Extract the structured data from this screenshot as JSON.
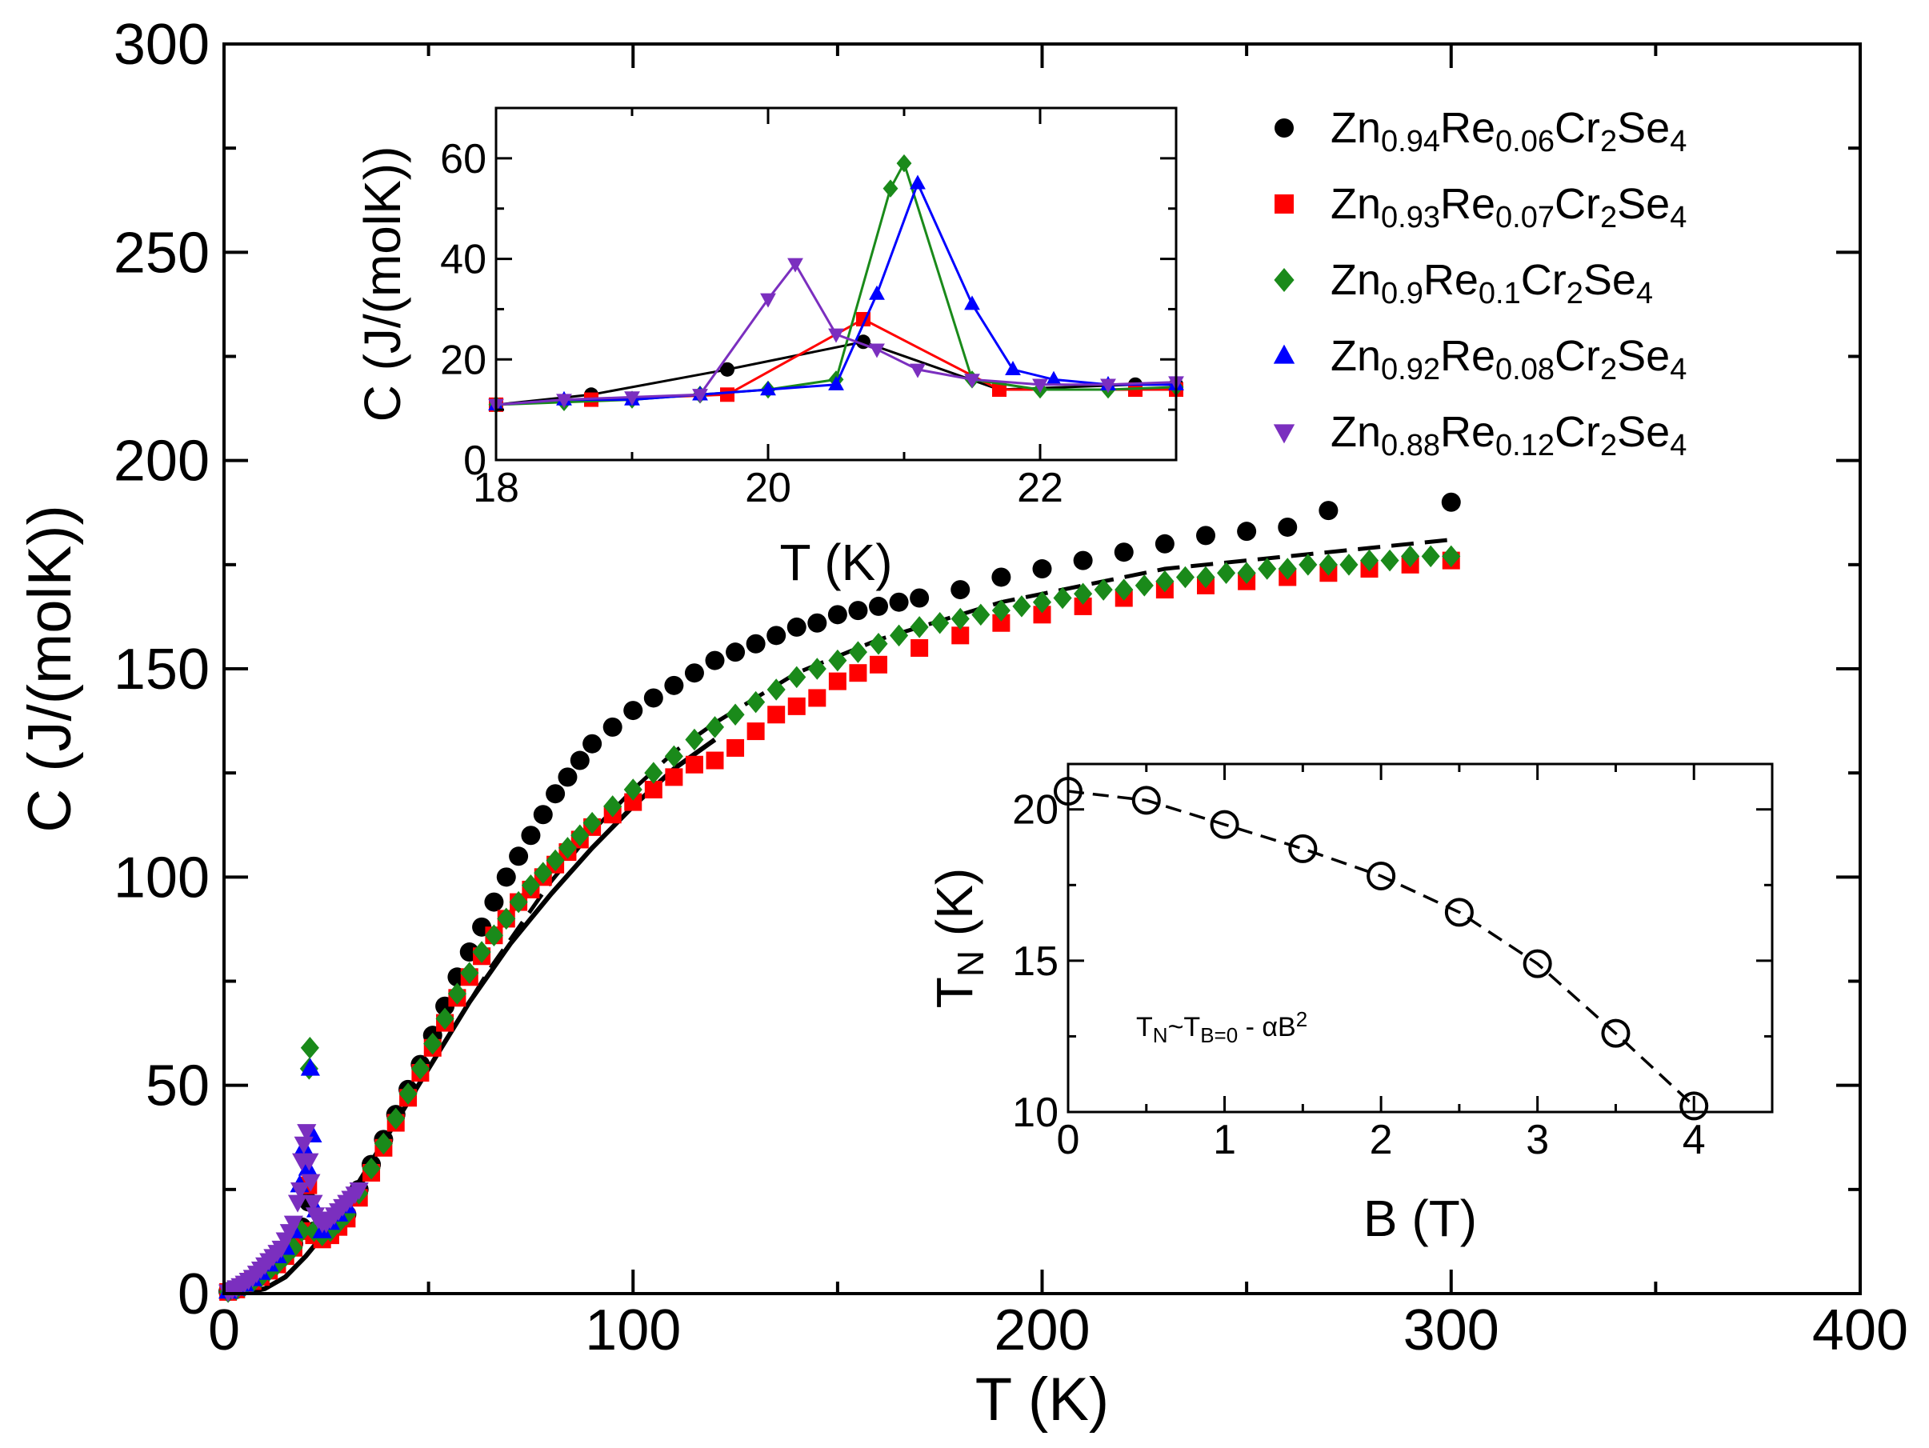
{
  "chart_data": [
    {
      "id": "main",
      "type": "scatter",
      "title": "",
      "xlabel": "T (K)",
      "ylabel": "C (J/(molK))",
      "xlim": [
        0,
        400
      ],
      "ylim": [
        0,
        300
      ],
      "xticks": [
        0,
        100,
        200,
        300,
        400
      ],
      "yticks": [
        0,
        50,
        100,
        150,
        200,
        250,
        300
      ],
      "legend": {
        "position": "top-right",
        "entries": [
          {
            "series": "s094",
            "parts": [
              [
                "Zn",
                ""
              ],
              [
                "0.94",
                "sub"
              ],
              [
                "Re",
                ""
              ],
              [
                "0.06",
                "sub"
              ],
              [
                "Cr",
                ""
              ],
              [
                "2",
                "sub"
              ],
              [
                "Se",
                ""
              ],
              [
                "4",
                "sub"
              ]
            ]
          },
          {
            "series": "s093",
            "parts": [
              [
                "Zn",
                ""
              ],
              [
                "0.93",
                "sub"
              ],
              [
                "Re",
                ""
              ],
              [
                "0.07",
                "sub"
              ],
              [
                "Cr",
                ""
              ],
              [
                "2",
                "sub"
              ],
              [
                "Se",
                ""
              ],
              [
                "4",
                "sub"
              ]
            ]
          },
          {
            "series": "s09",
            "parts": [
              [
                "Zn",
                ""
              ],
              [
                "0.9",
                "sub"
              ],
              [
                "Re",
                ""
              ],
              [
                "0.1",
                "sub"
              ],
              [
                "Cr",
                ""
              ],
              [
                "2",
                "sub"
              ],
              [
                "Se",
                ""
              ],
              [
                "4",
                "sub"
              ]
            ]
          },
          {
            "series": "s092",
            "parts": [
              [
                "Zn",
                ""
              ],
              [
                "0.92",
                "sub"
              ],
              [
                "Re",
                ""
              ],
              [
                "0.08",
                "sub"
              ],
              [
                "Cr",
                ""
              ],
              [
                "2",
                "sub"
              ],
              [
                "Se",
                ""
              ],
              [
                "4",
                "sub"
              ]
            ]
          },
          {
            "series": "s088",
            "parts": [
              [
                "Zn",
                ""
              ],
              [
                "0.88",
                "sub"
              ],
              [
                "Re",
                ""
              ],
              [
                "0.12",
                "sub"
              ],
              [
                "Cr",
                ""
              ],
              [
                "2",
                "sub"
              ],
              [
                "Se",
                ""
              ],
              [
                "4",
                "sub"
              ]
            ]
          }
        ]
      },
      "series": [
        {
          "name": "s094",
          "label": "Zn0.94Re0.06Cr2Se4",
          "color": "#000000",
          "marker": "circle",
          "x": [
            1,
            3,
            5,
            7,
            9,
            11,
            13,
            15,
            17,
            19,
            20.7,
            22,
            24,
            26,
            28,
            30,
            33,
            36,
            39,
            42,
            45,
            48,
            51,
            54,
            57,
            60,
            63,
            66,
            69,
            72,
            75,
            78,
            81,
            84,
            87,
            90,
            95,
            100,
            105,
            110,
            115,
            120,
            125,
            130,
            135,
            140,
            145,
            150,
            155,
            160,
            165,
            170,
            180,
            190,
            200,
            210,
            220,
            230,
            240,
            250,
            260,
            270,
            300
          ],
          "y": [
            0.5,
            1,
            2,
            3,
            4.5,
            6,
            8,
            10,
            12,
            16,
            22,
            15,
            14,
            15,
            17,
            19,
            25,
            31,
            37,
            43,
            49,
            55,
            62,
            69,
            76,
            82,
            88,
            94,
            100,
            105,
            110,
            115,
            120,
            124,
            128,
            132,
            136,
            140,
            143,
            146,
            149,
            152,
            154,
            156,
            158,
            160,
            161,
            163,
            164,
            165,
            166,
            167,
            169,
            172,
            174,
            176,
            178,
            180,
            182,
            183,
            184,
            188,
            190
          ]
        },
        {
          "name": "s093",
          "label": "Zn0.93Re0.07Cr2Se4",
          "color": "#ff0000",
          "marker": "square",
          "x": [
            1,
            3,
            5,
            7,
            9,
            11,
            13,
            15,
            17,
            19,
            20.6,
            22,
            24,
            26,
            28,
            30,
            33,
            36,
            39,
            42,
            45,
            48,
            51,
            54,
            57,
            60,
            63,
            66,
            69,
            72,
            75,
            78,
            81,
            84,
            87,
            90,
            95,
            100,
            105,
            110,
            115,
            120,
            125,
            130,
            135,
            140,
            145,
            150,
            155,
            160,
            170,
            180,
            190,
            200,
            210,
            220,
            230,
            240,
            250,
            260,
            270,
            280,
            290,
            300
          ],
          "y": [
            0.4,
            1,
            1.8,
            3,
            4,
            5.5,
            7,
            9,
            11,
            15,
            26,
            14,
            13,
            14,
            16,
            18,
            23,
            29,
            35,
            41,
            47,
            53,
            59,
            65,
            71,
            76,
            81,
            86,
            90,
            94,
            97,
            100,
            103,
            106,
            109,
            112,
            115,
            118,
            121,
            124,
            127,
            128,
            131,
            135,
            139,
            141,
            143,
            147,
            149,
            151,
            155,
            158,
            161,
            163,
            165,
            167,
            169,
            170,
            171,
            172,
            173,
            174,
            175,
            176
          ]
        },
        {
          "name": "s09",
          "label": "Zn0.9Re0.1Cr2Se4",
          "color": "#1a8a1a",
          "marker": "diamond",
          "x": [
            1,
            3,
            5,
            7,
            9,
            11,
            13,
            15,
            17,
            19,
            20.8,
            21,
            22,
            24,
            26,
            28,
            30,
            33,
            36,
            39,
            42,
            45,
            48,
            51,
            54,
            57,
            60,
            63,
            66,
            69,
            72,
            75,
            78,
            81,
            84,
            87,
            90,
            95,
            100,
            105,
            110,
            115,
            120,
            125,
            130,
            135,
            140,
            145,
            150,
            155,
            160,
            165,
            170,
            175,
            180,
            185,
            190,
            195,
            200,
            205,
            210,
            215,
            220,
            225,
            230,
            235,
            240,
            245,
            250,
            255,
            260,
            265,
            270,
            275,
            280,
            285,
            290,
            295,
            300
          ],
          "y": [
            0.4,
            1,
            1.8,
            2.8,
            4,
            5.5,
            7,
            9,
            11,
            15,
            54,
            59,
            15,
            14,
            15,
            17,
            19,
            24,
            30,
            36,
            42,
            48,
            54,
            60,
            66,
            72,
            77,
            82,
            86,
            90,
            94,
            98,
            101,
            104,
            107,
            110,
            113,
            117,
            121,
            125,
            129,
            133,
            136,
            139,
            142,
            145,
            148,
            150,
            152,
            154,
            156,
            158,
            160,
            161,
            162,
            163,
            164,
            165,
            166,
            167,
            168,
            169,
            169,
            170,
            171,
            172,
            172,
            173,
            173,
            174,
            174,
            175,
            175,
            175,
            176,
            176,
            177,
            177,
            177
          ]
        },
        {
          "name": "s092",
          "label": "Zn0.92Re0.08Cr2Se4",
          "color": "#0000ff",
          "marker": "triangle-up",
          "x": [
            1,
            3,
            5,
            7,
            9,
            11,
            13,
            15,
            17,
            18.5,
            19.5,
            20.5,
            21.1,
            21.6,
            22.5,
            24,
            26,
            28,
            30
          ],
          "y": [
            0.5,
            1.2,
            2.2,
            3.5,
            5,
            7,
            9,
            11,
            15,
            26,
            35,
            30,
            54,
            38,
            20,
            15,
            17,
            19,
            21
          ]
        },
        {
          "name": "s088",
          "label": "Zn0.88Re0.12Cr2Se4",
          "color": "#7b2fbf",
          "marker": "triangle-down",
          "x": [
            1,
            2,
            3,
            4,
            5,
            6,
            7,
            8,
            9,
            10,
            11,
            12,
            13,
            14,
            15,
            16,
            17,
            18,
            18.6,
            19,
            19.5,
            20.2,
            20.8,
            21.2,
            21.8,
            22.3,
            23,
            24,
            25,
            26,
            27,
            28,
            29,
            30,
            31,
            32,
            33
          ],
          "y": [
            0.5,
            1,
            1.5,
            2,
            2.6,
            3.3,
            4,
            5,
            6,
            7,
            8,
            9,
            10,
            11,
            13,
            15,
            17,
            22,
            25,
            32,
            36,
            39,
            32,
            27,
            22,
            19,
            18,
            17,
            17,
            18,
            19,
            20,
            21,
            22,
            23,
            24,
            25
          ]
        }
      ],
      "curves": [
        {
          "name": "solid-fit",
          "style": "solid",
          "x": [
            0,
            5,
            10,
            15,
            20,
            25,
            30,
            35,
            40,
            45,
            50,
            55,
            60,
            65,
            70,
            75,
            80,
            90,
            100,
            110,
            120
          ],
          "y": [
            0,
            0.1,
            1.2,
            4,
            9,
            15,
            22,
            30,
            38,
            46,
            54,
            62,
            70,
            77,
            84,
            90,
            96,
            107,
            117,
            126,
            133
          ]
        },
        {
          "name": "dashed-fit",
          "style": "dashed",
          "x": [
            0,
            5,
            10,
            15,
            20,
            25,
            30,
            35,
            40,
            45,
            50,
            55,
            60,
            65,
            70,
            75,
            80,
            90,
            100,
            110,
            120,
            130,
            140,
            150,
            160,
            170,
            180,
            190,
            200,
            210,
            220,
            230,
            240,
            250,
            260,
            270,
            280,
            290,
            300
          ],
          "y": [
            0,
            0.1,
            1.2,
            4,
            9,
            15,
            22,
            30,
            38,
            46,
            54,
            62,
            70,
            78,
            85,
            92,
            99,
            111,
            121,
            130,
            137,
            143,
            149,
            153,
            157,
            160,
            163,
            166,
            168,
            170,
            172,
            174,
            175,
            176,
            177,
            178,
            179,
            180,
            181
          ]
        }
      ]
    },
    {
      "id": "inset-top",
      "type": "line",
      "xlabel": "T (K)",
      "ylabel": "C (J/(molK))",
      "xlim": [
        18,
        23
      ],
      "ylim": [
        0,
        70
      ],
      "xticks": [
        18,
        20,
        22
      ],
      "yticks": [
        0,
        20,
        40,
        60
      ],
      "series": [
        {
          "name": "s094",
          "color": "#000000",
          "marker": "circle",
          "x": [
            18,
            18.7,
            19.7,
            20.7,
            21.7,
            22.7,
            23
          ],
          "y": [
            11,
            13,
            18,
            23.5,
            14,
            15,
            15
          ]
        },
        {
          "name": "s093",
          "color": "#ff0000",
          "marker": "square",
          "x": [
            18,
            18.7,
            19.7,
            20.7,
            21.7,
            22.7,
            23
          ],
          "y": [
            11,
            12,
            13,
            28,
            14,
            14,
            14
          ]
        },
        {
          "name": "s09",
          "color": "#1a8a1a",
          "marker": "diamond",
          "x": [
            18,
            18.5,
            19,
            19.5,
            20,
            20.5,
            20.9,
            21,
            21.5,
            22,
            22.5,
            23
          ],
          "y": [
            11,
            11.5,
            12,
            13,
            14,
            16,
            54,
            59,
            16,
            14,
            14,
            14.5
          ]
        },
        {
          "name": "s092",
          "color": "#0000ff",
          "marker": "triangle-up",
          "x": [
            18,
            18.5,
            19,
            19.5,
            20,
            20.5,
            20.8,
            21.1,
            21.5,
            21.8,
            22.1,
            22.5,
            23
          ],
          "y": [
            11,
            12,
            12,
            13,
            14,
            15,
            33,
            55,
            31,
            18,
            16,
            15,
            15
          ]
        },
        {
          "name": "s088",
          "color": "#7b2fbf",
          "marker": "triangle-down",
          "x": [
            18,
            18.5,
            19,
            19.5,
            20,
            20.2,
            20.5,
            20.8,
            21.1,
            21.5,
            22,
            22.5,
            23
          ],
          "y": [
            11,
            12,
            12.5,
            13,
            32,
            39,
            25,
            22,
            18,
            16,
            15,
            15,
            15.5
          ]
        }
      ]
    },
    {
      "id": "inset-bottom",
      "type": "line",
      "xlabel": "B (T)",
      "ylabel_main": "T",
      "ylabel_sub": "N",
      "ylabel_rest": " (K)",
      "xlim": [
        0,
        4.5
      ],
      "ylim": [
        10,
        21.5
      ],
      "xticks": [
        0,
        1,
        2,
        3,
        4
      ],
      "yticks": [
        10,
        15,
        20
      ],
      "annotation": {
        "t1": "T",
        "s1": "N",
        "t2": "~T",
        "s2": "B=0",
        "t3": " - αB",
        "sup": "2"
      },
      "series": [
        {
          "name": "TN-vs-B",
          "color": "#000000",
          "marker": "open-circle",
          "style": "dashed",
          "x": [
            0,
            0.5,
            1,
            1.5,
            2,
            2.5,
            3,
            3.5,
            4
          ],
          "y": [
            20.6,
            20.3,
            19.5,
            18.7,
            17.8,
            16.6,
            14.9,
            12.6,
            10.2
          ]
        }
      ]
    }
  ]
}
